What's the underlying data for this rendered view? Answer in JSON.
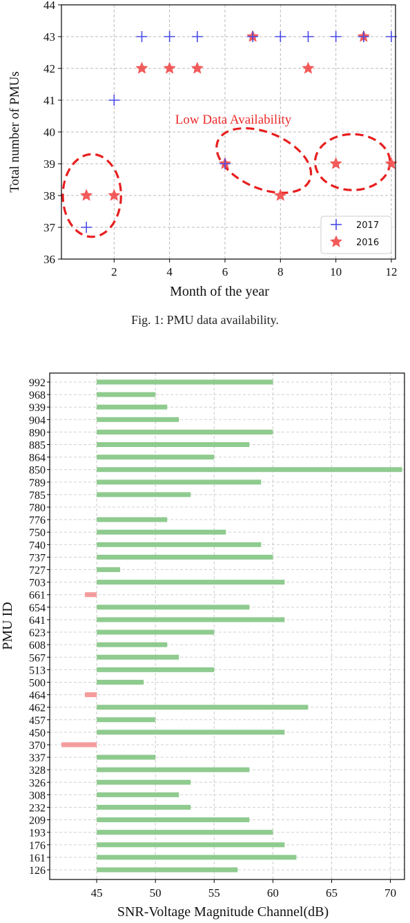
{
  "caption": "Fig. 1: PMU data availability.",
  "chart_data": [
    {
      "type": "scatter",
      "title": "",
      "xlabel": "Month of the year",
      "ylabel": "Total number of PMUs",
      "xlim": [
        0.1,
        12.15
      ],
      "ylim": [
        36,
        44
      ],
      "xticks": [
        2,
        4,
        6,
        8,
        10,
        12
      ],
      "yticks": [
        36,
        37,
        38,
        39,
        40,
        41,
        42,
        43,
        44
      ],
      "grid": true,
      "legend_position": "bottom-right",
      "series": [
        {
          "name": "2017",
          "marker": "plus",
          "color": "#4a4ae6",
          "x": [
            1,
            2,
            3,
            4,
            5,
            6,
            7,
            8,
            9,
            10,
            11,
            12
          ],
          "y": [
            37,
            41,
            43,
            43,
            43,
            39,
            43,
            43,
            43,
            43,
            43,
            43
          ]
        },
        {
          "name": "2016",
          "marker": "star",
          "color": "#f25252",
          "x": [
            1,
            2,
            3,
            4,
            5,
            6,
            7,
            8,
            9,
            10,
            11,
            12
          ],
          "y": [
            38,
            38,
            42,
            42,
            42,
            39,
            43,
            38,
            42,
            39,
            43,
            39
          ]
        }
      ],
      "annotations": [
        {
          "text": "Low Data Availability",
          "color": "#ea2b2b"
        }
      ],
      "highlight_regions": [
        {
          "x_center": 1.2,
          "y_center": 38,
          "x_radius": 1.05,
          "y_radius": 1.3,
          "rotation": 0
        },
        {
          "x_center": 7.4,
          "y_center": 39.1,
          "x_radius": 1.8,
          "y_radius": 0.88,
          "rotation": 23
        },
        {
          "x_center": 10.6,
          "y_center": 39.05,
          "x_radius": 1.35,
          "y_radius": 0.88,
          "rotation": 0
        }
      ]
    },
    {
      "type": "bar",
      "orientation": "horizontal",
      "title": "",
      "xlabel": "SNR-Voltage Magnitude Channel(dB)",
      "ylabel": "PMU ID",
      "xlim": [
        41,
        71.2
      ],
      "xticks": [
        45,
        50,
        55,
        60,
        65,
        70
      ],
      "grid": true,
      "baseline": 45,
      "positive_color": "#8fcb8f",
      "negative_color": "#f49c9c",
      "categories": [
        "992",
        "968",
        "939",
        "904",
        "890",
        "885",
        "864",
        "850",
        "789",
        "785",
        "780",
        "776",
        "750",
        "740",
        "737",
        "727",
        "703",
        "661",
        "654",
        "641",
        "623",
        "608",
        "567",
        "513",
        "500",
        "464",
        "462",
        "457",
        "450",
        "370",
        "337",
        "328",
        "326",
        "308",
        "232",
        "209",
        "193",
        "176",
        "161",
        "126"
      ],
      "values": [
        60,
        50,
        51,
        52,
        60,
        58,
        55,
        71,
        59,
        53,
        45,
        51,
        56,
        59,
        60,
        47,
        61,
        44,
        58,
        61,
        55,
        51,
        52,
        55,
        49,
        44,
        63,
        50,
        61,
        42,
        50,
        58,
        53,
        52,
        53,
        58,
        60,
        61,
        62,
        57
      ]
    }
  ]
}
